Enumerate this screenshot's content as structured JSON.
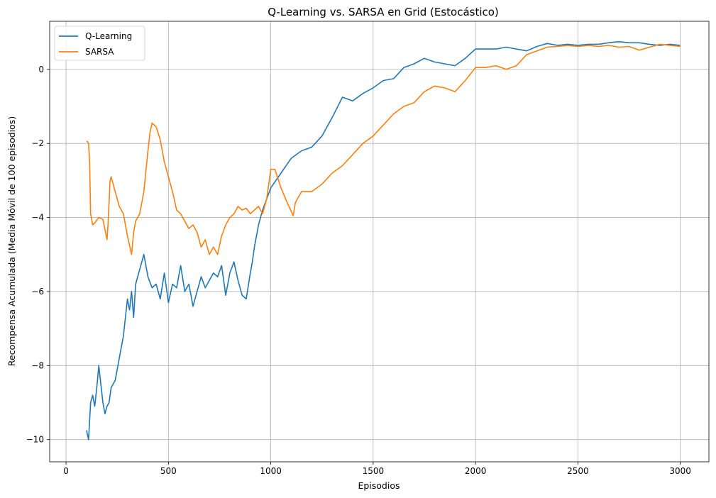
{
  "chart_data": {
    "type": "line",
    "title": "Q-Learning vs. SARSA en Grid (Estocástico)",
    "xlabel": "Episodios",
    "ylabel": "Recompensa Acumulada (Media Móvil de 100 episodios)",
    "xlim": [
      -80,
      3140
    ],
    "ylim": [
      -10.6,
      1.3
    ],
    "xticks": [
      0,
      500,
      1000,
      1500,
      2000,
      2500,
      3000
    ],
    "yticks": [
      -10,
      -8,
      -6,
      -4,
      -2,
      0
    ],
    "grid": true,
    "legend_position": "top-left",
    "series": [
      {
        "name": "Q-Learning",
        "color": "#1f77b4",
        "x": [
          100,
          110,
          120,
          130,
          140,
          150,
          160,
          170,
          180,
          190,
          200,
          210,
          220,
          240,
          260,
          280,
          300,
          310,
          320,
          330,
          340,
          360,
          380,
          400,
          420,
          440,
          460,
          480,
          500,
          520,
          540,
          560,
          580,
          600,
          620,
          640,
          660,
          680,
          700,
          720,
          740,
          760,
          780,
          800,
          820,
          840,
          860,
          880,
          900,
          910,
          920,
          940,
          960,
          980,
          1000,
          1050,
          1100,
          1150,
          1200,
          1250,
          1300,
          1350,
          1400,
          1450,
          1500,
          1550,
          1600,
          1650,
          1700,
          1750,
          1800,
          1850,
          1900,
          1950,
          2000,
          2050,
          2100,
          2150,
          2200,
          2250,
          2300,
          2350,
          2400,
          2450,
          2500,
          2550,
          2600,
          2650,
          2700,
          2750,
          2800,
          2850,
          2900,
          2950,
          3000
        ],
        "y": [
          -9.75,
          -10.0,
          -9.0,
          -8.8,
          -9.1,
          -8.6,
          -8.0,
          -8.5,
          -9.0,
          -9.3,
          -9.1,
          -9.0,
          -8.6,
          -8.4,
          -7.8,
          -7.2,
          -6.2,
          -6.5,
          -6.0,
          -6.7,
          -5.8,
          -5.4,
          -5.0,
          -5.6,
          -5.9,
          -5.8,
          -6.2,
          -5.5,
          -6.3,
          -5.8,
          -5.9,
          -5.3,
          -6.0,
          -5.8,
          -6.4,
          -6.0,
          -5.6,
          -5.9,
          -5.7,
          -5.5,
          -5.6,
          -5.3,
          -6.1,
          -5.5,
          -5.2,
          -5.7,
          -6.1,
          -6.2,
          -5.5,
          -5.2,
          -4.8,
          -4.2,
          -3.8,
          -3.5,
          -3.2,
          -2.8,
          -2.4,
          -2.2,
          -2.1,
          -1.8,
          -1.3,
          -0.75,
          -0.85,
          -0.65,
          -0.5,
          -0.3,
          -0.25,
          0.05,
          0.15,
          0.3,
          0.2,
          0.15,
          0.1,
          0.3,
          0.55,
          0.55,
          0.55,
          0.6,
          0.55,
          0.5,
          0.62,
          0.7,
          0.65,
          0.68,
          0.65,
          0.68,
          0.68,
          0.72,
          0.75,
          0.72,
          0.72,
          0.68,
          0.65,
          0.68,
          0.65
        ]
      },
      {
        "name": "SARSA",
        "color": "#ff7f0e",
        "x": [
          100,
          105,
          110,
          115,
          120,
          130,
          140,
          160,
          180,
          200,
          205,
          210,
          215,
          220,
          240,
          260,
          280,
          300,
          320,
          330,
          340,
          360,
          380,
          400,
          410,
          420,
          430,
          440,
          460,
          480,
          500,
          520,
          540,
          560,
          580,
          600,
          620,
          640,
          660,
          680,
          700,
          720,
          740,
          760,
          780,
          800,
          820,
          840,
          860,
          880,
          900,
          920,
          940,
          960,
          980,
          1000,
          1020,
          1050,
          1080,
          1110,
          1120,
          1150,
          1200,
          1250,
          1300,
          1350,
          1400,
          1450,
          1500,
          1550,
          1600,
          1650,
          1700,
          1750,
          1800,
          1850,
          1900,
          1950,
          2000,
          2050,
          2100,
          2150,
          2200,
          2250,
          2300,
          2350,
          2400,
          2450,
          2500,
          2550,
          2600,
          2650,
          2700,
          2750,
          2800,
          2850,
          2900,
          2950,
          3000
        ],
        "y": [
          -1.95,
          -1.95,
          -2.0,
          -2.5,
          -3.9,
          -4.2,
          -4.15,
          -4.0,
          -4.05,
          -4.6,
          -4.2,
          -3.6,
          -3.0,
          -2.9,
          -3.3,
          -3.7,
          -3.9,
          -4.5,
          -5.0,
          -4.4,
          -4.1,
          -3.9,
          -3.3,
          -2.2,
          -1.7,
          -1.45,
          -1.5,
          -1.55,
          -1.9,
          -2.5,
          -2.9,
          -3.3,
          -3.8,
          -3.9,
          -4.1,
          -4.3,
          -4.2,
          -4.4,
          -4.8,
          -4.6,
          -5.0,
          -4.8,
          -5.0,
          -4.5,
          -4.2,
          -4.0,
          -3.9,
          -3.7,
          -3.8,
          -3.75,
          -3.9,
          -3.8,
          -3.7,
          -3.9,
          -3.5,
          -2.7,
          -2.7,
          -3.2,
          -3.6,
          -3.95,
          -3.6,
          -3.3,
          -3.3,
          -3.1,
          -2.8,
          -2.6,
          -2.3,
          -2.0,
          -1.8,
          -1.5,
          -1.2,
          -1.0,
          -0.9,
          -0.6,
          -0.45,
          -0.5,
          -0.6,
          -0.3,
          0.05,
          0.05,
          0.1,
          0.0,
          0.1,
          0.4,
          0.5,
          0.6,
          0.62,
          0.65,
          0.62,
          0.65,
          0.62,
          0.65,
          0.6,
          0.62,
          0.52,
          0.6,
          0.68,
          0.65,
          0.62
        ]
      }
    ]
  }
}
